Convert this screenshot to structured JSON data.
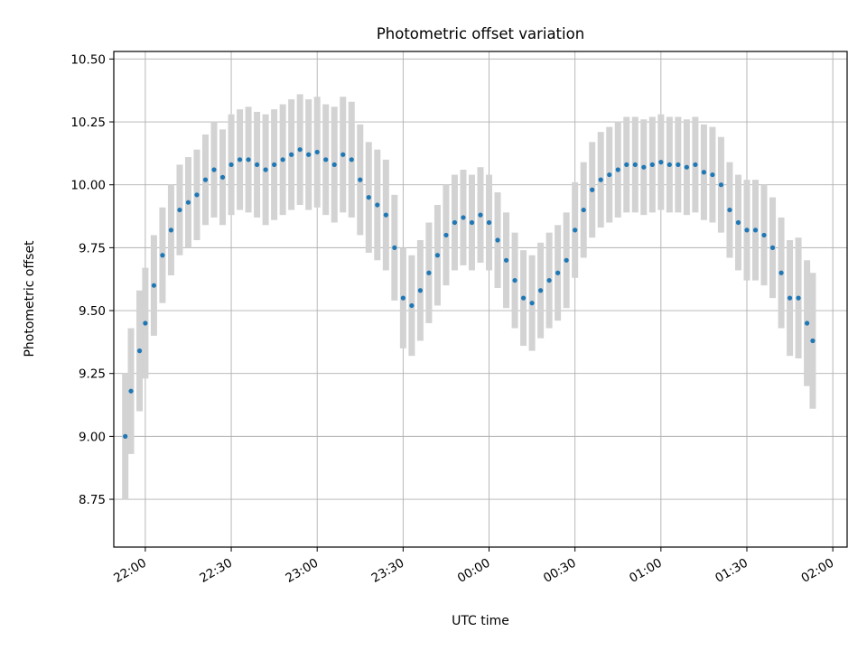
{
  "chart_data": {
    "type": "scatter",
    "title": "Photometric offset variation",
    "xlabel": "UTC time",
    "ylabel": "Photometric offset",
    "grid": true,
    "colors": {
      "points": "#1f77b4",
      "errorbars": "#d3d3d3",
      "grid": "#b0b0b0"
    },
    "x_ticks": [
      "22:00",
      "22:30",
      "23:00",
      "23:30",
      "00:00",
      "00:30",
      "01:00",
      "01:30",
      "02:00"
    ],
    "y_ticks": [
      "8.75",
      "9.00",
      "9.25",
      "9.50",
      "9.75",
      "10.00",
      "10.25",
      "10.50"
    ],
    "xlim": [
      "21:49",
      "02:05"
    ],
    "ylim": [
      8.56,
      10.53
    ],
    "series": [
      {
        "x": [
          "21:53",
          "21:55",
          "21:58",
          "22:00",
          "22:03",
          "22:06",
          "22:09",
          "22:12",
          "22:15",
          "22:18",
          "22:21",
          "22:24",
          "22:27",
          "22:30",
          "22:33",
          "22:36",
          "22:39",
          "22:42",
          "22:45",
          "22:48",
          "22:51",
          "22:54",
          "22:57",
          "23:00",
          "23:03",
          "23:06",
          "23:09",
          "23:12",
          "23:15",
          "23:18",
          "23:21",
          "23:24",
          "23:27",
          "23:30",
          "23:33",
          "23:36",
          "23:39",
          "23:42",
          "23:45",
          "23:48",
          "23:51",
          "23:54",
          "23:57",
          "00:00",
          "00:03",
          "00:06",
          "00:09",
          "00:12",
          "00:15",
          "00:18",
          "00:21",
          "00:24",
          "00:27",
          "00:30",
          "00:33",
          "00:36",
          "00:39",
          "00:42",
          "00:45",
          "00:48",
          "00:51",
          "00:54",
          "00:57",
          "01:00",
          "01:03",
          "01:06",
          "01:09",
          "01:12",
          "01:15",
          "01:18",
          "01:21",
          "01:24",
          "01:27",
          "01:30",
          "01:33",
          "01:36",
          "01:39",
          "01:42",
          "01:45",
          "01:48",
          "01:51",
          "01:53"
        ],
        "y": [
          9.0,
          9.18,
          9.34,
          9.45,
          9.6,
          9.72,
          9.82,
          9.9,
          9.93,
          9.96,
          10.02,
          10.06,
          10.03,
          10.08,
          10.1,
          10.1,
          10.08,
          10.06,
          10.08,
          10.1,
          10.12,
          10.14,
          10.12,
          10.13,
          10.1,
          10.08,
          10.12,
          10.1,
          10.02,
          9.95,
          9.92,
          9.88,
          9.75,
          9.55,
          9.52,
          9.58,
          9.65,
          9.72,
          9.8,
          9.85,
          9.87,
          9.85,
          9.88,
          9.85,
          9.78,
          9.7,
          9.62,
          9.55,
          9.53,
          9.58,
          9.62,
          9.65,
          9.7,
          9.82,
          9.9,
          9.98,
          10.02,
          10.04,
          10.06,
          10.08,
          10.08,
          10.07,
          10.08,
          10.09,
          10.08,
          10.08,
          10.07,
          10.08,
          10.05,
          10.04,
          10.0,
          9.9,
          9.85,
          9.82,
          9.82,
          9.8,
          9.75,
          9.65,
          9.55,
          9.55,
          9.45,
          9.38
        ],
        "errors": [
          0.25,
          0.25,
          0.24,
          0.22,
          0.2,
          0.19,
          0.18,
          0.18,
          0.18,
          0.18,
          0.18,
          0.19,
          0.19,
          0.2,
          0.2,
          0.21,
          0.21,
          0.22,
          0.22,
          0.22,
          0.22,
          0.22,
          0.22,
          0.22,
          0.22,
          0.23,
          0.23,
          0.23,
          0.22,
          0.22,
          0.22,
          0.22,
          0.21,
          0.2,
          0.2,
          0.2,
          0.2,
          0.2,
          0.2,
          0.19,
          0.19,
          0.19,
          0.19,
          0.19,
          0.19,
          0.19,
          0.19,
          0.19,
          0.19,
          0.19,
          0.19,
          0.19,
          0.19,
          0.19,
          0.19,
          0.19,
          0.19,
          0.19,
          0.19,
          0.19,
          0.19,
          0.19,
          0.19,
          0.19,
          0.19,
          0.19,
          0.19,
          0.19,
          0.19,
          0.19,
          0.19,
          0.19,
          0.19,
          0.2,
          0.2,
          0.2,
          0.2,
          0.22,
          0.23,
          0.24,
          0.25,
          0.27
        ]
      }
    ]
  }
}
